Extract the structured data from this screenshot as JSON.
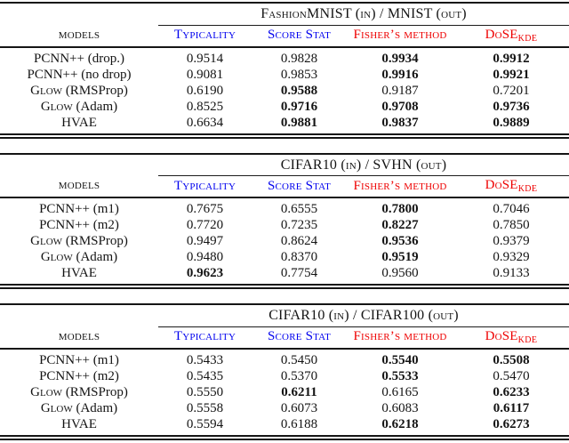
{
  "colors": {
    "blue": "#0000ee",
    "red": "#ee0000"
  },
  "tables": [
    {
      "title": "FashionMNIST (in) / MNIST (out)",
      "models_header": "models",
      "columns": [
        {
          "label": "Typicality",
          "sub": "",
          "color": "blue"
        },
        {
          "label": "Score Stat",
          "sub": "",
          "color": "blue"
        },
        {
          "label": "Fisher’s method",
          "sub": "",
          "color": "red"
        },
        {
          "label": "DoSE",
          "sub": "KDE",
          "color": "red"
        }
      ],
      "rows": [
        {
          "model_sc": "PCNN++",
          "model_rest": " (drop.)",
          "cells": [
            {
              "v": "0.9514",
              "b": false
            },
            {
              "v": "0.9828",
              "b": false
            },
            {
              "v": "0.9934",
              "b": true
            },
            {
              "v": "0.9912",
              "b": true
            }
          ]
        },
        {
          "model_sc": "PCNN++",
          "model_rest": " (no drop)",
          "cells": [
            {
              "v": "0.9081",
              "b": false
            },
            {
              "v": "0.9853",
              "b": false
            },
            {
              "v": "0.9916",
              "b": true
            },
            {
              "v": "0.9921",
              "b": true
            }
          ]
        },
        {
          "model_sc": "Glow",
          "model_rest": " (RMSProp)",
          "cells": [
            {
              "v": "0.6190",
              "b": false
            },
            {
              "v": "0.9588",
              "b": true
            },
            {
              "v": "0.9187",
              "b": false
            },
            {
              "v": "0.7201",
              "b": false
            }
          ]
        },
        {
          "model_sc": "Glow",
          "model_rest": " (Adam)",
          "cells": [
            {
              "v": "0.8525",
              "b": false
            },
            {
              "v": "0.9716",
              "b": true
            },
            {
              "v": "0.9708",
              "b": true
            },
            {
              "v": "0.9736",
              "b": true
            }
          ]
        },
        {
          "model_sc": "HVAE",
          "model_rest": "",
          "cells": [
            {
              "v": "0.6634",
              "b": false
            },
            {
              "v": "0.9881",
              "b": true
            },
            {
              "v": "0.9837",
              "b": true
            },
            {
              "v": "0.9889",
              "b": true
            }
          ]
        }
      ]
    },
    {
      "title": "CIFAR10 (in) / SVHN (out)",
      "models_header": "models",
      "columns": [
        {
          "label": "Typicality",
          "sub": "",
          "color": "blue"
        },
        {
          "label": "Score Stat",
          "sub": "",
          "color": "blue"
        },
        {
          "label": "Fisher’s method",
          "sub": "",
          "color": "red"
        },
        {
          "label": "DoSE",
          "sub": "KDE",
          "color": "red"
        }
      ],
      "rows": [
        {
          "model_sc": "PCNN++",
          "model_rest": " (m1)",
          "cells": [
            {
              "v": "0.7675",
              "b": false
            },
            {
              "v": "0.6555",
              "b": false
            },
            {
              "v": "0.7800",
              "b": true
            },
            {
              "v": "0.7046",
              "b": false
            }
          ]
        },
        {
          "model_sc": "PCNN++",
          "model_rest": " (m2)",
          "cells": [
            {
              "v": "0.7720",
              "b": false
            },
            {
              "v": "0.7235",
              "b": false
            },
            {
              "v": "0.8227",
              "b": true
            },
            {
              "v": "0.7850",
              "b": false
            }
          ]
        },
        {
          "model_sc": "Glow",
          "model_rest": " (RMSProp)",
          "cells": [
            {
              "v": "0.9497",
              "b": false
            },
            {
              "v": "0.8624",
              "b": false
            },
            {
              "v": "0.9536",
              "b": true
            },
            {
              "v": "0.9379",
              "b": false
            }
          ]
        },
        {
          "model_sc": "Glow",
          "model_rest": " (Adam)",
          "cells": [
            {
              "v": "0.9480",
              "b": false
            },
            {
              "v": "0.8370",
              "b": false
            },
            {
              "v": "0.9519",
              "b": true
            },
            {
              "v": "0.9329",
              "b": false
            }
          ]
        },
        {
          "model_sc": "HVAE",
          "model_rest": "",
          "cells": [
            {
              "v": "0.9623",
              "b": true
            },
            {
              "v": "0.7754",
              "b": false
            },
            {
              "v": "0.9560",
              "b": false
            },
            {
              "v": "0.9133",
              "b": false
            }
          ]
        }
      ]
    },
    {
      "title": "CIFAR10 (in) / CIFAR100 (out)",
      "models_header": "models",
      "columns": [
        {
          "label": "Typicality",
          "sub": "",
          "color": "blue"
        },
        {
          "label": "Score Stat",
          "sub": "",
          "color": "blue"
        },
        {
          "label": "Fisher’s method",
          "sub": "",
          "color": "red"
        },
        {
          "label": "DoSE",
          "sub": "KDE",
          "color": "red"
        }
      ],
      "rows": [
        {
          "model_sc": "PCNN++",
          "model_rest": " (m1)",
          "cells": [
            {
              "v": "0.5433",
              "b": false
            },
            {
              "v": "0.5450",
              "b": false
            },
            {
              "v": "0.5540",
              "b": true
            },
            {
              "v": "0.5508",
              "b": true
            }
          ]
        },
        {
          "model_sc": "PCNN++",
          "model_rest": " (m2)",
          "cells": [
            {
              "v": "0.5435",
              "b": false
            },
            {
              "v": "0.5370",
              "b": false
            },
            {
              "v": "0.5533",
              "b": true
            },
            {
              "v": "0.5470",
              "b": false
            }
          ]
        },
        {
          "model_sc": "Glow",
          "model_rest": " (RMSProp)",
          "cells": [
            {
              "v": "0.5550",
              "b": false
            },
            {
              "v": "0.6211",
              "b": true
            },
            {
              "v": "0.6165",
              "b": false
            },
            {
              "v": "0.6233",
              "b": true
            }
          ]
        },
        {
          "model_sc": "Glow",
          "model_rest": " (Adam)",
          "cells": [
            {
              "v": "0.5558",
              "b": false
            },
            {
              "v": "0.6073",
              "b": false
            },
            {
              "v": "0.6083",
              "b": false
            },
            {
              "v": "0.6117",
              "b": true
            }
          ]
        },
        {
          "model_sc": "HVAE",
          "model_rest": "",
          "cells": [
            {
              "v": "0.5594",
              "b": false
            },
            {
              "v": "0.6188",
              "b": false
            },
            {
              "v": "0.6218",
              "b": true
            },
            {
              "v": "0.6273",
              "b": true
            }
          ]
        }
      ]
    }
  ]
}
